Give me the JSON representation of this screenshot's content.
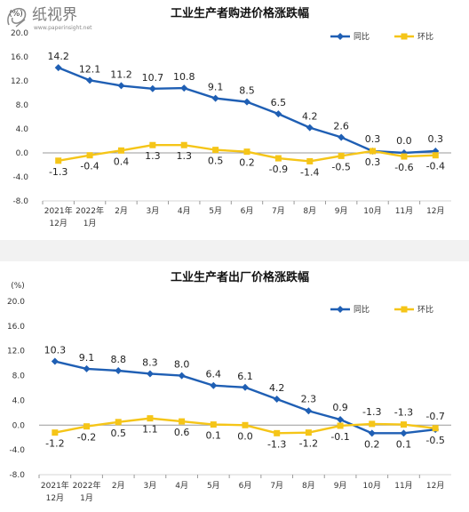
{
  "chart_data": [
    {
      "type": "line",
      "title": "工业生产者购进价格涨跌幅",
      "unit_label": "(%)",
      "ylim": [
        -8.0,
        20.0
      ],
      "yticks": [
        "20.0",
        "16.0",
        "12.0",
        "8.0",
        "4.0",
        "0.0",
        "-4.0",
        "-8.0"
      ],
      "categories": [
        [
          "2021年",
          "12月"
        ],
        [
          "2022年",
          "1月"
        ],
        [
          "2月"
        ],
        [
          "3月"
        ],
        [
          "4月"
        ],
        [
          "5月"
        ],
        [
          "6月"
        ],
        [
          "7月"
        ],
        [
          "8月"
        ],
        [
          "9月"
        ],
        [
          "10月"
        ],
        [
          "11月"
        ],
        [
          "12月"
        ]
      ],
      "legend_position": "top-right",
      "series": [
        {
          "name": "同比",
          "color": "#1f5fb4",
          "values": [
            14.2,
            12.1,
            11.2,
            10.7,
            10.8,
            9.1,
            8.5,
            6.5,
            4.2,
            2.6,
            0.3,
            0.0,
            0.3
          ]
        },
        {
          "name": "环比",
          "color": "#f5c518",
          "values": [
            -1.3,
            -0.4,
            0.4,
            1.3,
            1.3,
            0.5,
            0.2,
            -0.9,
            -1.4,
            -0.5,
            0.3,
            -0.6,
            -0.4
          ]
        }
      ]
    },
    {
      "type": "line",
      "title": "工业生产者出厂价格涨跌幅",
      "unit_label": "(%)",
      "ylim": [
        -8.0,
        20.0
      ],
      "yticks": [
        "20.0",
        "16.0",
        "12.0",
        "8.0",
        "4.0",
        "0.0",
        "-4.0",
        "-8.0"
      ],
      "categories": [
        [
          "2021年",
          "12月"
        ],
        [
          "2022年",
          "1月"
        ],
        [
          "2月"
        ],
        [
          "3月"
        ],
        [
          "4月"
        ],
        [
          "5月"
        ],
        [
          "6月"
        ],
        [
          "7月"
        ],
        [
          "8月"
        ],
        [
          "9月"
        ],
        [
          "10月"
        ],
        [
          "11月"
        ],
        [
          "12月"
        ]
      ],
      "legend_position": "top-right",
      "series": [
        {
          "name": "同比",
          "color": "#1f5fb4",
          "values": [
            10.3,
            9.1,
            8.8,
            8.3,
            8.0,
            6.4,
            6.1,
            4.2,
            2.3,
            0.9,
            -1.3,
            -1.3,
            -0.7
          ]
        },
        {
          "name": "环比",
          "color": "#f5c518",
          "values": [
            -1.2,
            -0.2,
            0.5,
            1.1,
            0.6,
            0.1,
            0.0,
            -1.3,
            -1.2,
            -0.1,
            0.2,
            0.1,
            -0.5
          ]
        }
      ]
    }
  ],
  "watermark": {
    "main": "纸视界",
    "sub": "www.paperinsight.net"
  }
}
